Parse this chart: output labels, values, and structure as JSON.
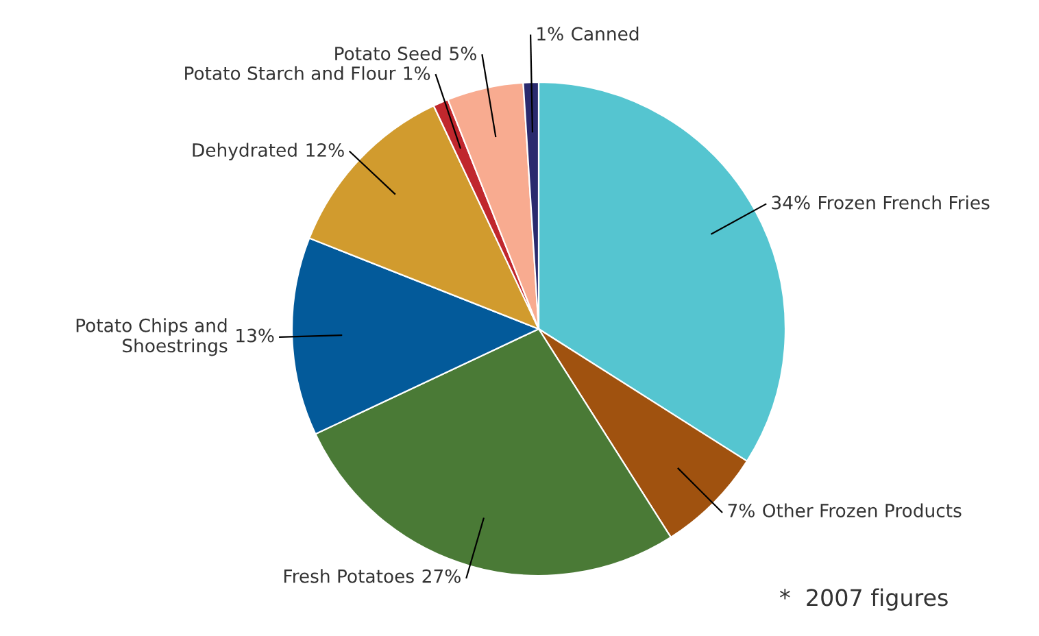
{
  "chart_data": {
    "type": "pie",
    "categories": [
      "Frozen French Fries",
      "Other Frozen Products",
      "Fresh Potatoes",
      "Potato Chips and\nShoestrings",
      "Dehydrated",
      "Potato Starch and Flour",
      "Potato Seed",
      "Canned"
    ],
    "values": [
      34,
      7,
      27,
      13,
      12,
      1,
      5,
      1
    ],
    "colors": [
      "#55c5d0",
      "#a0520f",
      "#4a7a36",
      "#035a9a",
      "#d19b2e",
      "#c0272d",
      "#f8ab90",
      "#2a2a6e"
    ],
    "value_labels": [
      "34%",
      "7%",
      "27%",
      "13%",
      "12%",
      "1%",
      "5%",
      "1%"
    ],
    "annotations": [
      "*  2007 figures"
    ]
  }
}
